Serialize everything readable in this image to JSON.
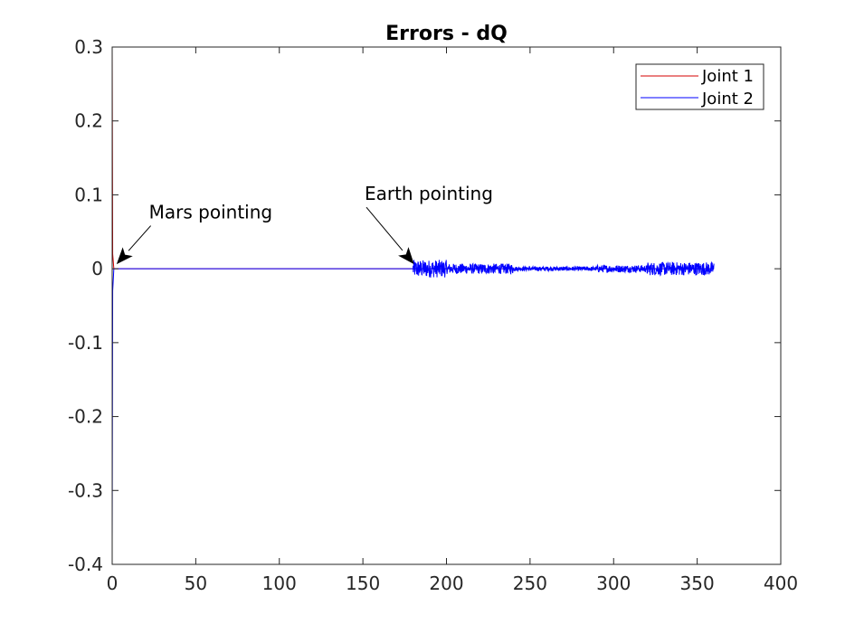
{
  "chart_data": {
    "type": "line",
    "title": "Errors - dQ",
    "xlabel": "",
    "ylabel": "",
    "xlim": [
      0,
      400
    ],
    "ylim": [
      -0.4,
      0.3
    ],
    "xticks": [
      0,
      50,
      100,
      150,
      200,
      250,
      300,
      350,
      400
    ],
    "yticks": [
      -0.4,
      -0.3,
      -0.2,
      -0.1,
      0,
      0.1,
      0.2,
      0.3
    ],
    "xtick_labels": [
      "0",
      "50",
      "100",
      "150",
      "200",
      "250",
      "300",
      "350",
      "400"
    ],
    "ytick_labels": [
      "-0.4",
      "-0.3",
      "-0.2",
      "-0.1",
      "0",
      "0.1",
      "0.2",
      "0.3"
    ],
    "grid": false,
    "legend": "top-right",
    "series": [
      {
        "name": "Joint 1",
        "color": "#d40000",
        "x": [
          0,
          0.3,
          1,
          180,
          360
        ],
        "y": [
          0.3,
          0.02,
          0,
          0,
          0
        ]
      },
      {
        "name": "Joint 2",
        "color": "#0000ff",
        "x": [
          0,
          0.3,
          1,
          180,
          360
        ],
        "y": [
          -0.37,
          -0.03,
          0,
          0,
          0
        ],
        "noise": [
          {
            "x_start": 180,
            "x_end": 200,
            "amplitude": 0.012
          },
          {
            "x_start": 200,
            "x_end": 240,
            "amplitude": 0.007
          },
          {
            "x_start": 240,
            "x_end": 290,
            "amplitude": 0.003
          },
          {
            "x_start": 290,
            "x_end": 320,
            "amplitude": 0.005
          },
          {
            "x_start": 320,
            "x_end": 360,
            "amplitude": 0.009
          }
        ]
      }
    ],
    "annotations": [
      {
        "text": "Mars pointing",
        "x": 1,
        "y": 0,
        "text_x": 22,
        "text_y": 0.068
      },
      {
        "text": "Earth pointing",
        "x": 179,
        "y": 0,
        "text_x": 151,
        "text_y": 0.093
      }
    ]
  }
}
